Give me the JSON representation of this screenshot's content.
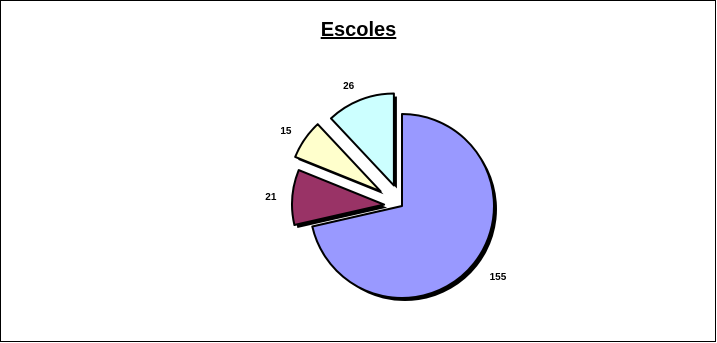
{
  "chart_data": {
    "type": "pie",
    "title": "Escoles",
    "series": [
      {
        "values": [
          155,
          21,
          15,
          26
        ]
      }
    ],
    "labels": [
      "155",
      "21",
      "15",
      "26"
    ],
    "colors": [
      "#9999FF",
      "#993366",
      "#FFFFCC",
      "#CCFFFF"
    ],
    "exploded": true,
    "legend": "none"
  }
}
